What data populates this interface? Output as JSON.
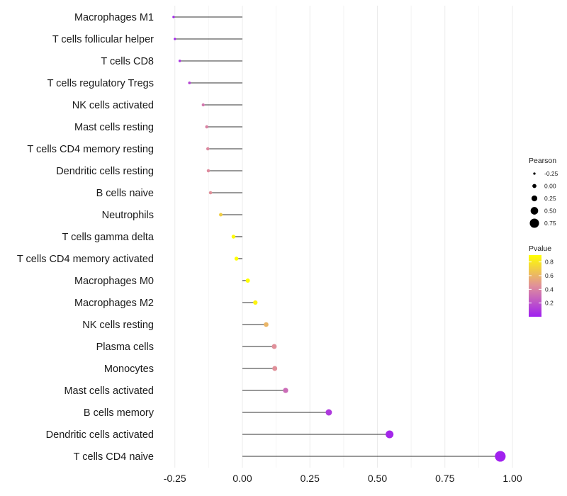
{
  "chart_data": {
    "type": "lollipop",
    "title": "",
    "xlabel": "",
    "ylabel": "",
    "xlim": [
      -0.27,
      1.0
    ],
    "xticks": [
      -0.25,
      0.0,
      0.25,
      0.5,
      0.75,
      1.0
    ],
    "xtick_labels": [
      "-0.25",
      "0.00",
      "0.25",
      "0.50",
      "0.75",
      "1.00"
    ],
    "grid": true,
    "categories": [
      "Macrophages M1",
      "T cells follicular helper",
      "T cells CD8",
      "T cells regulatory  Tregs",
      "NK cells activated",
      "Mast cells resting",
      "T cells CD4 memory resting",
      "Dendritic cells resting",
      "B cells naive",
      "Neutrophils",
      "T cells gamma delta",
      "T cells CD4 memory activated",
      "Macrophages M0",
      "Macrophages M2",
      "NK cells resting",
      "Plasma cells",
      "Monocytes",
      "Mast cells activated",
      "B cells memory",
      "Dendritic cells activated",
      "T cells CD4 naive"
    ],
    "pearson": [
      -0.255,
      -0.25,
      -0.232,
      -0.196,
      -0.145,
      -0.132,
      -0.128,
      -0.126,
      -0.118,
      -0.08,
      -0.033,
      -0.022,
      0.02,
      0.048,
      0.088,
      0.118,
      0.12,
      0.16,
      0.32,
      0.545,
      0.955
    ],
    "pvalue": [
      0.02,
      0.03,
      0.08,
      0.15,
      0.35,
      0.4,
      0.42,
      0.43,
      0.45,
      0.7,
      0.88,
      0.92,
      0.97,
      0.85,
      0.6,
      0.45,
      0.45,
      0.3,
      0.1,
      0.03,
      0.005
    ],
    "size_legend": {
      "title": "Pearson",
      "labels": [
        "-0.25",
        "0.00",
        "0.25",
        "0.50",
        "0.75"
      ],
      "values": [
        -0.25,
        0.0,
        0.25,
        0.5,
        0.75
      ]
    },
    "color_legend": {
      "title": "Pvalue",
      "labels": [
        "0.8",
        "0.6",
        "0.4",
        "0.2"
      ],
      "values": [
        0.8,
        0.6,
        0.4,
        0.2
      ],
      "range": [
        0.0,
        0.9
      ],
      "low_color": "#a020f0",
      "mid_color": "#e0909a",
      "high_color": "#ffff00"
    }
  }
}
